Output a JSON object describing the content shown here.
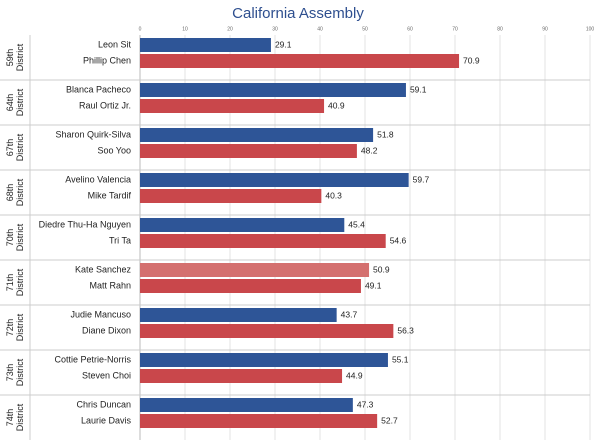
{
  "chart_data": {
    "type": "bar",
    "orientation": "horizontal",
    "title": "California Assembly",
    "xlim": [
      0,
      100
    ],
    "xticks": [
      0,
      10,
      20,
      30,
      40,
      50,
      60,
      70,
      80,
      90,
      100
    ],
    "grid": true,
    "groups": [
      {
        "label": "59th District",
        "bars": [
          {
            "name": "Leon Sit",
            "value": 29.1,
            "color": "#2e5597"
          },
          {
            "name": "Phillip Chen",
            "value": 70.9,
            "color": "#c9474b"
          }
        ]
      },
      {
        "label": "64th District",
        "bars": [
          {
            "name": "Blanca Pacheco",
            "value": 59.1,
            "color": "#2e5597"
          },
          {
            "name": "Raul Ortiz Jr.",
            "value": 40.9,
            "color": "#c9474b"
          }
        ]
      },
      {
        "label": "67th District",
        "bars": [
          {
            "name": "Sharon Quirk-Silva",
            "value": 51.8,
            "color": "#2e5597"
          },
          {
            "name": "Soo Yoo",
            "value": 48.2,
            "color": "#c9474b"
          }
        ]
      },
      {
        "label": "68th District",
        "bars": [
          {
            "name": "Avelino Valencia",
            "value": 59.7,
            "color": "#2e5597"
          },
          {
            "name": "Mike Tardif",
            "value": 40.3,
            "color": "#c9474b"
          }
        ]
      },
      {
        "label": "70th District",
        "bars": [
          {
            "name": "Diedre Thu-Ha Nguyen",
            "value": 45.4,
            "color": "#2e5597"
          },
          {
            "name": "Tri Ta",
            "value": 54.6,
            "color": "#c9474b"
          }
        ]
      },
      {
        "label": "71th District",
        "bars": [
          {
            "name": "Kate Sanchez",
            "value": 50.9,
            "color": "#d4706f"
          },
          {
            "name": "Matt Rahn",
            "value": 49.1,
            "color": "#c9474b"
          }
        ]
      },
      {
        "label": "72th District",
        "bars": [
          {
            "name": "Judie Mancuso",
            "value": 43.7,
            "color": "#2e5597"
          },
          {
            "name": "Diane Dixon",
            "value": 56.3,
            "color": "#c9474b"
          }
        ]
      },
      {
        "label": "73th District",
        "bars": [
          {
            "name": "Cottie Petrie-Norris",
            "value": 55.1,
            "color": "#2e5597"
          },
          {
            "name": "Steven Choi",
            "value": 44.9,
            "color": "#c9474b"
          }
        ]
      },
      {
        "label": "74th District",
        "bars": [
          {
            "name": "Chris Duncan",
            "value": 47.3,
            "color": "#2e5597"
          },
          {
            "name": "Laurie Davis",
            "value": 52.7,
            "color": "#c9474b"
          }
        ]
      }
    ]
  }
}
